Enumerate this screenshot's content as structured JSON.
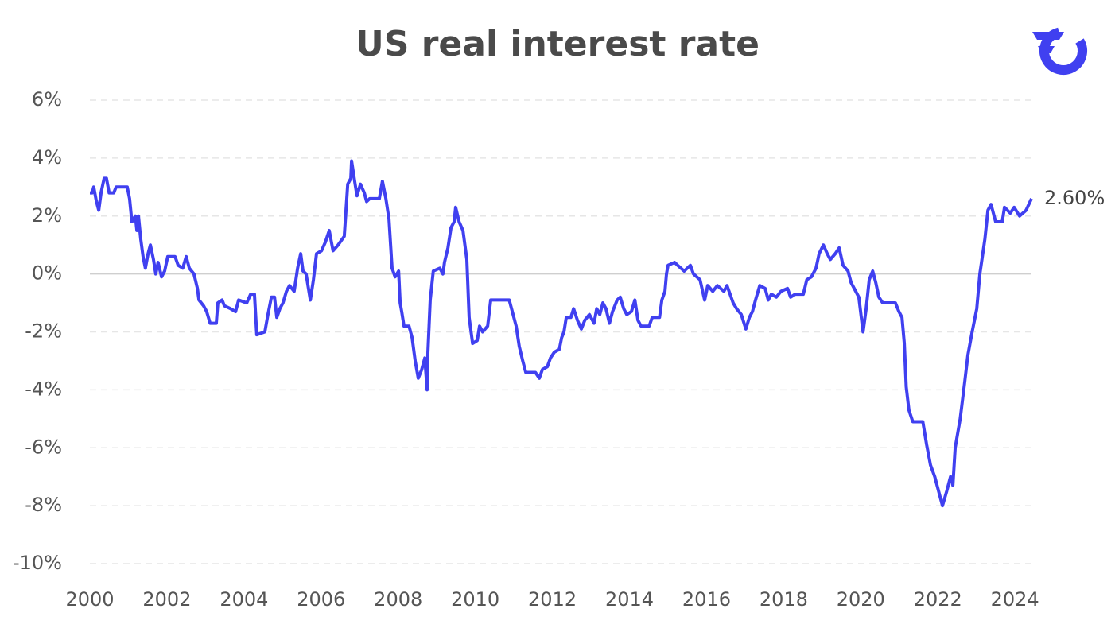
{
  "chart_data": {
    "type": "line",
    "title": "US real interest rate",
    "xlim": [
      2000,
      2024.43
    ],
    "ylim": [
      -10,
      6
    ],
    "xticks": [
      2000,
      2002,
      2004,
      2006,
      2008,
      2010,
      2012,
      2014,
      2016,
      2018,
      2020,
      2022,
      2024
    ],
    "yticks": [
      {
        "value": -10,
        "label": "-10%"
      },
      {
        "value": -8,
        "label": "-8%"
      },
      {
        "value": -6,
        "label": "-6%"
      },
      {
        "value": -4,
        "label": "-4%"
      },
      {
        "value": -2,
        "label": "-2%"
      },
      {
        "value": 0,
        "label": "0%"
      },
      {
        "value": 2,
        "label": "2%"
      },
      {
        "value": 4,
        "label": "4%"
      },
      {
        "value": 6,
        "label": "6%"
      }
    ],
    "grid": true,
    "annotation": "2.60%",
    "series": [
      {
        "color": "#4040f0",
        "x": [
          2000.0,
          2000.06,
          2000.1,
          2000.17,
          2000.23,
          2000.29,
          2000.37,
          2000.43,
          2000.5,
          2000.62,
          2000.68,
          2000.97,
          2001.03,
          2001.09,
          2001.18,
          2001.22,
          2001.26,
          2001.32,
          2001.38,
          2001.44,
          2001.51,
          2001.57,
          2001.65,
          2001.71,
          2001.77,
          2001.86,
          2001.94,
          2002.02,
          2002.21,
          2002.29,
          2002.41,
          2002.5,
          2002.58,
          2002.7,
          2002.79,
          2002.83,
          2002.95,
          2003.03,
          2003.12,
          2003.28,
          2003.32,
          2003.43,
          2003.49,
          2003.65,
          2003.78,
          2003.86,
          2004.07,
          2004.17,
          2004.27,
          2004.33,
          2004.54,
          2004.62,
          2004.71,
          2004.79,
          2004.85,
          2004.93,
          2005.01,
          2005.1,
          2005.18,
          2005.3,
          2005.39,
          2005.47,
          2005.53,
          2005.61,
          2005.72,
          2005.8,
          2005.88,
          2006.01,
          2006.11,
          2006.21,
          2006.31,
          2006.44,
          2006.6,
          2006.69,
          2006.77,
          2006.79,
          2006.87,
          2006.93,
          2007.02,
          2007.12,
          2007.18,
          2007.26,
          2007.51,
          2007.59,
          2007.68,
          2007.76,
          2007.84,
          2007.92,
          2008.01,
          2008.05,
          2008.09,
          2008.15,
          2008.28,
          2008.36,
          2008.44,
          2008.52,
          2008.61,
          2008.69,
          2008.75,
          2008.77,
          2008.83,
          2008.91,
          2009.08,
          2009.16,
          2009.2,
          2009.29,
          2009.37,
          2009.45,
          2009.49,
          2009.58,
          2009.68,
          2009.78,
          2009.84,
          2009.93,
          2010.05,
          2010.11,
          2010.19,
          2010.32,
          2010.4,
          2010.57,
          2010.88,
          2010.96,
          2011.06,
          2011.14,
          2011.23,
          2011.31,
          2011.56,
          2011.66,
          2011.74,
          2011.87,
          2011.95,
          2012.05,
          2012.18,
          2012.24,
          2012.3,
          2012.36,
          2012.48,
          2012.55,
          2012.65,
          2012.75,
          2012.84,
          2012.96,
          2013.08,
          2013.15,
          2013.23,
          2013.31,
          2013.39,
          2013.48,
          2013.56,
          2013.68,
          2013.76,
          2013.85,
          2013.93,
          2014.05,
          2014.14,
          2014.22,
          2014.3,
          2014.51,
          2014.59,
          2014.78,
          2014.84,
          2014.92,
          2014.96,
          2015.0,
          2015.17,
          2015.25,
          2015.42,
          2015.58,
          2015.66,
          2015.83,
          2015.95,
          2016.03,
          2016.16,
          2016.28,
          2016.45,
          2016.53,
          2016.61,
          2016.69,
          2016.78,
          2016.9,
          2017.02,
          2017.11,
          2017.19,
          2017.27,
          2017.38,
          2017.52,
          2017.6,
          2017.68,
          2017.81,
          2017.93,
          2018.1,
          2018.18,
          2018.3,
          2018.51,
          2018.6,
          2018.72,
          2018.84,
          2018.92,
          2019.03,
          2019.13,
          2019.21,
          2019.34,
          2019.44,
          2019.54,
          2019.67,
          2019.75,
          2019.83,
          2019.95,
          2020.06,
          2020.14,
          2020.22,
          2020.31,
          2020.39,
          2020.47,
          2020.57,
          2020.78,
          2020.9,
          2020.99,
          2021.07,
          2021.13,
          2021.18,
          2021.25,
          2021.35,
          2021.61,
          2021.71,
          2021.81,
          2021.92,
          2022.02,
          2022.12,
          2022.23,
          2022.33,
          2022.39,
          2022.45,
          2022.58,
          2022.7,
          2022.78,
          2022.89,
          2023.01,
          2023.09,
          2023.22,
          2023.3,
          2023.38,
          2023.5,
          2023.67,
          2023.73,
          2023.88,
          2023.98,
          2024.12,
          2024.29,
          2024.43
        ],
        "values": [
          2.8,
          2.8,
          3.0,
          2.5,
          2.2,
          2.8,
          3.3,
          3.3,
          2.8,
          2.8,
          3.0,
          3.0,
          2.6,
          1.8,
          2.0,
          1.5,
          2.0,
          1.2,
          0.6,
          0.2,
          0.7,
          1.0,
          0.5,
          0.0,
          0.4,
          -0.1,
          0.1,
          0.6,
          0.6,
          0.3,
          0.2,
          0.6,
          0.2,
          0.0,
          -0.5,
          -0.9,
          -1.1,
          -1.3,
          -1.7,
          -1.7,
          -1.0,
          -0.9,
          -1.1,
          -1.2,
          -1.3,
          -0.9,
          -1.0,
          -0.7,
          -0.7,
          -2.1,
          -2.0,
          -1.4,
          -0.8,
          -0.8,
          -1.5,
          -1.2,
          -1.0,
          -0.6,
          -0.4,
          -0.6,
          0.2,
          0.7,
          0.1,
          0.0,
          -0.9,
          -0.2,
          0.7,
          0.8,
          1.1,
          1.5,
          0.8,
          1.0,
          1.3,
          3.1,
          3.3,
          3.9,
          3.2,
          2.7,
          3.1,
          2.8,
          2.5,
          2.6,
          2.6,
          3.2,
          2.6,
          1.9,
          0.2,
          -0.1,
          0.1,
          -1.0,
          -1.3,
          -1.8,
          -1.8,
          -2.2,
          -3.0,
          -3.6,
          -3.3,
          -2.9,
          -4.0,
          -2.7,
          -0.9,
          0.1,
          0.2,
          0.0,
          0.4,
          0.9,
          1.6,
          1.8,
          2.3,
          1.8,
          1.5,
          0.5,
          -1.5,
          -2.4,
          -2.3,
          -1.8,
          -2.0,
          -1.8,
          -0.9,
          -0.9,
          -0.9,
          -1.3,
          -1.8,
          -2.5,
          -3.0,
          -3.4,
          -3.4,
          -3.6,
          -3.3,
          -3.2,
          -2.9,
          -2.7,
          -2.6,
          -2.2,
          -2.0,
          -1.5,
          -1.5,
          -1.2,
          -1.6,
          -1.9,
          -1.6,
          -1.4,
          -1.7,
          -1.2,
          -1.4,
          -1.0,
          -1.2,
          -1.7,
          -1.3,
          -0.9,
          -0.8,
          -1.2,
          -1.4,
          -1.3,
          -0.9,
          -1.6,
          -1.8,
          -1.8,
          -1.5,
          -1.5,
          -0.9,
          -0.6,
          0.0,
          0.3,
          0.4,
          0.3,
          0.1,
          0.3,
          0.0,
          -0.2,
          -0.9,
          -0.4,
          -0.6,
          -0.4,
          -0.6,
          -0.4,
          -0.7,
          -1.0,
          -1.2,
          -1.4,
          -1.9,
          -1.5,
          -1.3,
          -0.9,
          -0.4,
          -0.5,
          -0.9,
          -0.7,
          -0.8,
          -0.6,
          -0.5,
          -0.8,
          -0.7,
          -0.7,
          -0.2,
          -0.1,
          0.2,
          0.7,
          1.0,
          0.7,
          0.5,
          0.7,
          0.9,
          0.3,
          0.1,
          -0.3,
          -0.5,
          -0.8,
          -2.0,
          -1.2,
          -0.2,
          0.1,
          -0.3,
          -0.8,
          -1.0,
          -1.0,
          -1.0,
          -1.3,
          -1.5,
          -2.4,
          -3.9,
          -4.7,
          -5.1,
          -5.1,
          -5.9,
          -6.6,
          -7.0,
          -7.5,
          -8.0,
          -7.5,
          -7.0,
          -7.3,
          -6.0,
          -5.0,
          -3.7,
          -2.8,
          -2.0,
          -1.2,
          0.0,
          1.2,
          2.2,
          2.4,
          1.8,
          1.8,
          2.3,
          2.1,
          2.3,
          2.0,
          2.2,
          2.6
        ]
      }
    ]
  }
}
